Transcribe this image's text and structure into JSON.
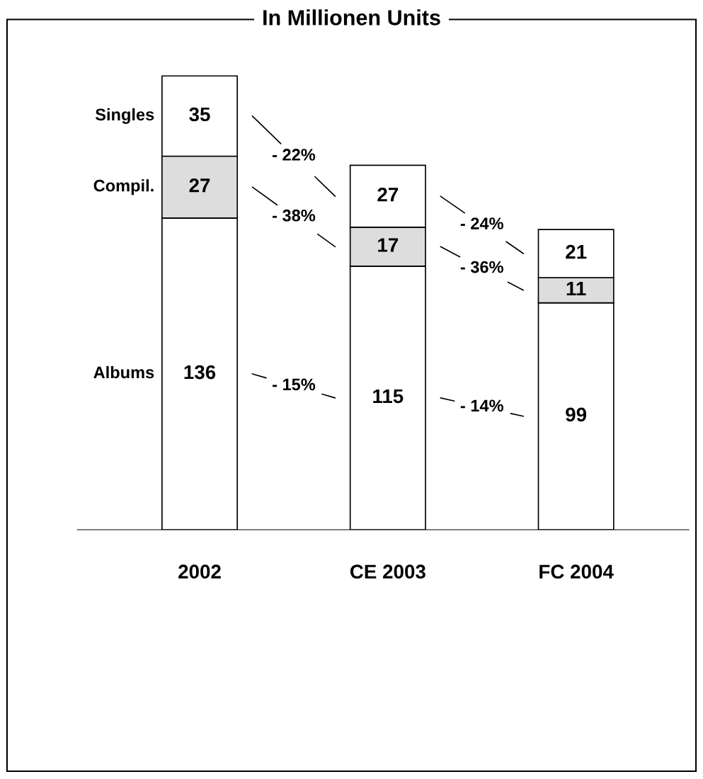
{
  "chart_data": {
    "type": "bar",
    "title": "In Millionen Units",
    "stacked": true,
    "data_labels": true,
    "categories": [
      "2002",
      "CE 2003",
      "FC 2004"
    ],
    "series": [
      {
        "name": "Albums",
        "color": "#ffffff",
        "values": [
          136,
          115,
          99
        ]
      },
      {
        "name": "Compil.",
        "color": "#dddddd",
        "values": [
          27,
          17,
          11
        ]
      },
      {
        "name": "Singles",
        "color": "#ffffff",
        "values": [
          35,
          27,
          21
        ]
      }
    ],
    "annotations": [
      "- 15%",
      "- 14%",
      "- 38%",
      "- 36%",
      "- 22%",
      "- 24%"
    ],
    "grid": false,
    "legend": false
  }
}
